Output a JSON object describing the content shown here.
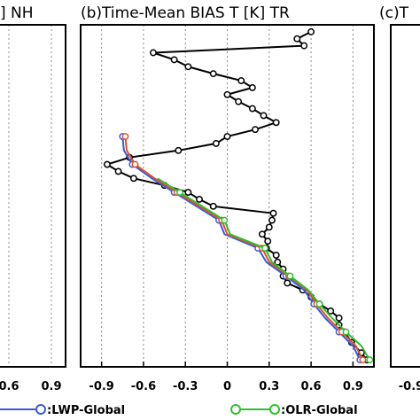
{
  "figure": {
    "title_left": "] NH",
    "title_center": "(b)Time-Mean BIAS T [K] TR",
    "title_right": "(c)T"
  },
  "chart_data": [
    {
      "type": "line",
      "panel": "left (partial)",
      "title": "] NH",
      "xticklabels": [
        "0.6",
        "0.9"
      ]
    },
    {
      "type": "line",
      "panel": "center",
      "title": "(b)Time-Mean BIAS T [K] TR",
      "xlim": [
        -1.05,
        1.05
      ],
      "xticks": [
        -0.9,
        -0.6,
        -0.3,
        0,
        0.3,
        0.6,
        0.9
      ],
      "xticklabels": [
        "-0.9",
        "-0.6",
        "-0.3",
        "0",
        "0.3",
        "0.6",
        "0.9"
      ],
      "grid": "vertical dashed",
      "legend": "bottom",
      "series": [
        {
          "name": "",
          "color": "#000000",
          "x": [
            1.0,
            0.96,
            0.89,
            0.84,
            0.8,
            0.8,
            0.74,
            0.66,
            0.6,
            0.54,
            0.43,
            0.4,
            0.4,
            0.36,
            0.35,
            0.28,
            0.29,
            0.25,
            0.3,
            0.32,
            0.33,
            -0.1,
            -0.2,
            -0.28,
            -0.45,
            -0.67,
            -0.78,
            -0.86,
            -0.7,
            -0.35,
            -0.08,
            0.0,
            0.2,
            0.35,
            0.26,
            0.18,
            0.08,
            0.0,
            0.18,
            0.1,
            -0.1,
            -0.28,
            -0.38,
            -0.53,
            0.55,
            0.5,
            0.6
          ],
          "y": [
            1000,
            990,
            975,
            960,
            950,
            940,
            930,
            920,
            910,
            900,
            890,
            880,
            870,
            860,
            850,
            840,
            830,
            820,
            810,
            800,
            790,
            780,
            770,
            760,
            750,
            740,
            730,
            720,
            710,
            700,
            690,
            680,
            670,
            660,
            650,
            640,
            630,
            620,
            610,
            600,
            590,
            580,
            570,
            560,
            550,
            540,
            530
          ]
        },
        {
          "name": "LWP-Global",
          "color": "#3b5bdb",
          "x": [
            0.95,
            0.9,
            0.8,
            0.7,
            0.62,
            0.55,
            0.42,
            0.28,
            0.22,
            -0.02,
            -0.06,
            -0.22,
            -0.38,
            -0.54,
            -0.68,
            -0.74,
            -0.75
          ],
          "y": [
            1000,
            980,
            960,
            940,
            920,
            900,
            880,
            860,
            840,
            820,
            800,
            780,
            760,
            740,
            720,
            700,
            680
          ]
        },
        {
          "name": "",
          "color": "#e0522a",
          "x": [
            0.97,
            0.92,
            0.82,
            0.72,
            0.64,
            0.57,
            0.44,
            0.3,
            0.25,
            0.0,
            -0.04,
            -0.2,
            -0.36,
            -0.52,
            -0.66,
            -0.72,
            -0.73
          ],
          "y": [
            1000,
            980,
            960,
            940,
            920,
            900,
            880,
            860,
            840,
            820,
            800,
            780,
            760,
            740,
            720,
            700,
            680
          ]
        },
        {
          "name": "OLR-Global",
          "color": "#2fbf2f",
          "x": [
            1.02,
            0.96,
            0.85,
            0.75,
            0.66,
            0.58,
            0.45,
            0.32,
            0.27,
            0.02,
            -0.02,
            -0.18,
            -0.34,
            -0.5
          ],
          "y": [
            1000,
            980,
            960,
            940,
            920,
            900,
            880,
            860,
            840,
            820,
            800,
            780,
            760,
            740
          ]
        }
      ]
    },
    {
      "type": "line",
      "panel": "right (partial)",
      "title": "(c)T",
      "xticklabels": [
        "-0.9"
      ]
    }
  ],
  "legend": {
    "item1": ":LWP-Global",
    "item2": ":OLR-Global"
  }
}
